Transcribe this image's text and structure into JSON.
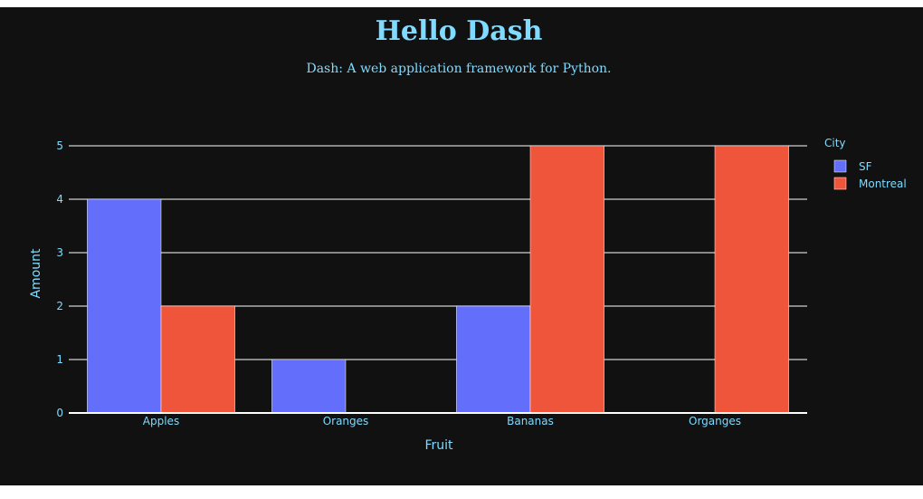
{
  "page": {
    "title": "Hello Dash",
    "subtitle": "Dash: A web application framework for Python."
  },
  "colors": {
    "background": "#111111",
    "text": "#7FDBFF",
    "grid": "#ffffff",
    "sf": "#636EFA",
    "montreal": "#EF553B"
  },
  "chart_data": {
    "type": "bar",
    "barmode": "group",
    "categories": [
      "Apples",
      "Oranges",
      "Bananas",
      "Organges"
    ],
    "series": [
      {
        "name": "SF",
        "values": [
          4,
          1,
          2,
          null
        ],
        "color": "#636EFA"
      },
      {
        "name": "Montreal",
        "values": [
          2,
          null,
          5,
          5
        ],
        "color": "#EF553B"
      }
    ],
    "xlabel": "Fruit",
    "ylabel": "Amount",
    "ylim": [
      0,
      5
    ],
    "yticks": [
      0,
      1,
      2,
      3,
      4,
      5
    ],
    "grid": true,
    "legend": {
      "title": "City",
      "position": "top-right"
    }
  }
}
